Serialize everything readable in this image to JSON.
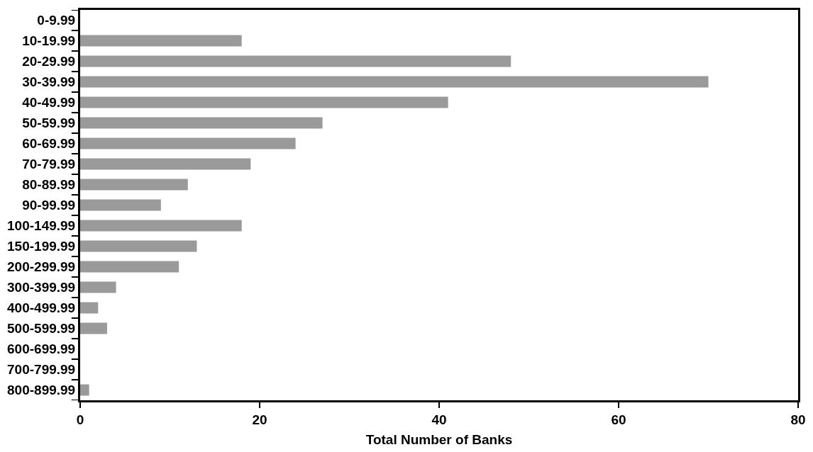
{
  "chart_data": {
    "type": "bar",
    "orientation": "horizontal",
    "xlabel": "Total Number of Banks",
    "categories": [
      "0-9.99",
      "10-19.99",
      "20-29.99",
      "30-39.99",
      "40-49.99",
      "50-59.99",
      "60-69.99",
      "70-79.99",
      "80-89.99",
      "90-99.99",
      "100-149.99",
      "150-199.99",
      "200-299.99",
      "300-399.99",
      "400-499.99",
      "500-599.99",
      "600-699.99",
      "700-799.99",
      "800-899.99"
    ],
    "values": [
      0,
      18,
      48,
      70,
      41,
      27,
      24,
      19,
      12,
      9,
      18,
      13,
      11,
      4,
      2,
      3,
      0,
      0,
      1
    ],
    "color": "#9a9a9a",
    "xlim": [
      0,
      80
    ],
    "xticks": [
      0,
      20,
      40,
      60,
      80
    ]
  }
}
